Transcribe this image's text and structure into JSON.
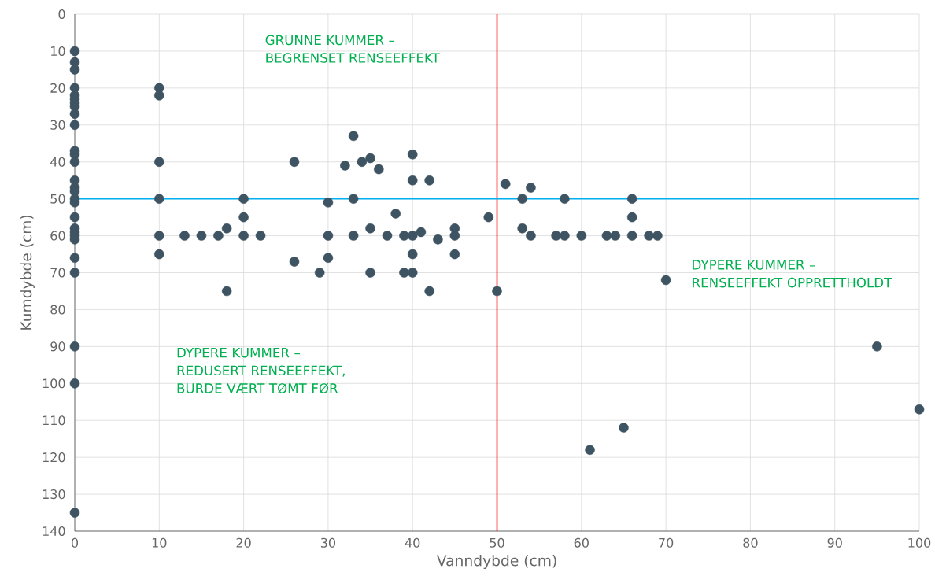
{
  "chart_data": {
    "type": "scatter",
    "xlabel": "Vanndybde (cm)",
    "ylabel": "Kumdybde (cm)",
    "x": [
      0,
      0,
      0,
      0,
      0,
      0,
      0,
      0,
      0,
      0,
      0,
      0,
      0,
      0,
      0,
      0,
      0,
      0,
      0,
      0,
      0,
      0,
      0,
      0,
      0,
      0,
      0,
      0,
      10,
      10,
      10,
      10,
      10,
      10,
      13,
      15,
      17,
      18,
      18,
      20,
      20,
      20,
      22,
      26,
      26,
      29,
      30,
      30,
      30,
      32,
      33,
      33,
      33,
      34,
      35,
      35,
      35,
      36,
      37,
      38,
      39,
      39,
      40,
      40,
      40,
      40,
      40,
      41,
      42,
      42,
      43,
      45,
      45,
      45,
      49,
      50,
      51,
      53,
      53,
      54,
      54,
      57,
      58,
      58,
      60,
      61,
      63,
      64,
      65,
      66,
      66,
      66,
      68,
      69,
      70,
      95,
      100
    ],
    "values": [
      10,
      13,
      15,
      20,
      22,
      23,
      24,
      25,
      27,
      30,
      37,
      38,
      40,
      45,
      47,
      48,
      50,
      51,
      55,
      58,
      59,
      60,
      61,
      66,
      70,
      90,
      100,
      135,
      20,
      22,
      40,
      50,
      60,
      65,
      60,
      60,
      60,
      58,
      75,
      50,
      55,
      60,
      60,
      40,
      67,
      70,
      51,
      60,
      66,
      41,
      33,
      50,
      60,
      40,
      39,
      58,
      70,
      42,
      60,
      54,
      60,
      70,
      38,
      45,
      60,
      65,
      70,
      59,
      45,
      75,
      61,
      58,
      60,
      65,
      55,
      75,
      46,
      50,
      58,
      47,
      60,
      60,
      50,
      60,
      60,
      118,
      60,
      60,
      112,
      50,
      55,
      60,
      60,
      60,
      72,
      90,
      107
    ],
    "color": "#3f5463",
    "xlim": [
      0,
      100
    ],
    "xticks": [
      0,
      10,
      20,
      30,
      40,
      50,
      60,
      70,
      80,
      90,
      100
    ],
    "ylim": [
      140,
      0
    ],
    "yticks": [
      0,
      10,
      20,
      30,
      40,
      50,
      60,
      70,
      80,
      90,
      100,
      110,
      120,
      130,
      140
    ],
    "grid": true,
    "ref_lines": [
      {
        "axis": "x",
        "value": 50,
        "color": "#ff0000"
      },
      {
        "axis": "y",
        "value": 50,
        "color": "#00b0f0"
      }
    ],
    "annotations": [
      "GRUNNE KUMMER –\nBEGRENSET RENSEEFFEKT",
      "DYPERE KUMMER –\nRENSEEFFEKT OPPRETTHOLDT",
      "DYPERE KUMMER –\nREDUSERT RENSEEFFEKT,\nBURDE VÆRT TØMT FØR"
    ]
  }
}
